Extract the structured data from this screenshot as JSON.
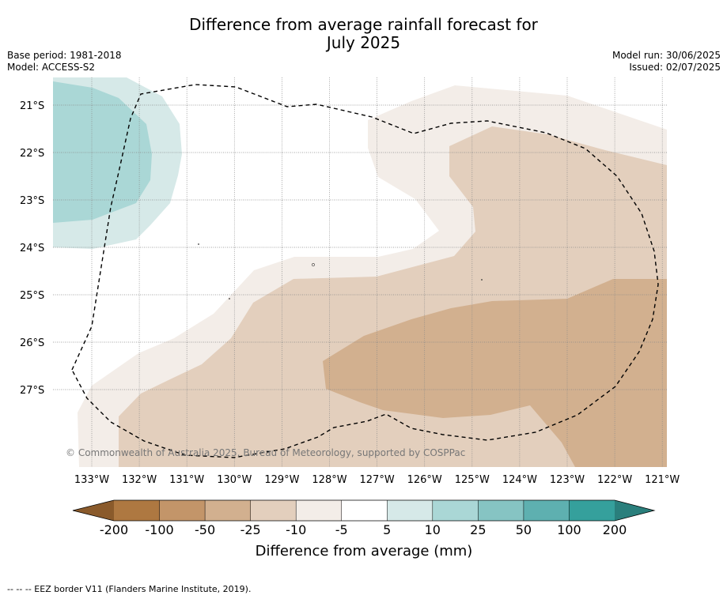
{
  "title_line1": "Difference from average rainfall forecast for",
  "title_line2": "July 2025",
  "base_period": "Base period: 1981-2018",
  "model": "Model: ACCESS-S2",
  "model_run": "Model run: 30/06/2025",
  "issued": "Issued: 02/07/2025",
  "copyright": "© Commonwealth of Australia 2025, Bureau of Meteorology, supported by COSPPac",
  "lat_labels": [
    "21°S",
    "22°S",
    "23°S",
    "24°S",
    "25°S",
    "26°S",
    "27°S"
  ],
  "lon_labels": [
    "133°W",
    "132°W",
    "131°W",
    "130°W",
    "129°W",
    "128°W",
    "127°W",
    "126°W",
    "125°W",
    "124°W",
    "123°W",
    "122°W",
    "121°W"
  ],
  "colorbar": {
    "ticks": [
      "-200",
      "-100",
      "-50",
      "-25",
      "-10",
      "-5",
      "5",
      "10",
      "25",
      "50",
      "100",
      "200"
    ],
    "label": "Difference from average (mm)",
    "colors": {
      "lt_-200": "#8a5a2b",
      "-200_-100": "#ae7841",
      "-100_-50": "#c39569",
      "-50_-25": "#d2b08f",
      "-25_-10": "#e3cfbd",
      "-10_-5": "#f3ede8",
      "-5_5": "#ffffff",
      "5_10": "#d6e9e8",
      "10_25": "#aad7d6",
      "25_50": "#86c4c3",
      "50_100": "#5eb0b0",
      "100_200": "#35a09c",
      "gt_200": "#2a7f7c"
    }
  },
  "footnote": "-- -- -- EEZ border V11 (Flanders Marine Institute, 2019)."
}
